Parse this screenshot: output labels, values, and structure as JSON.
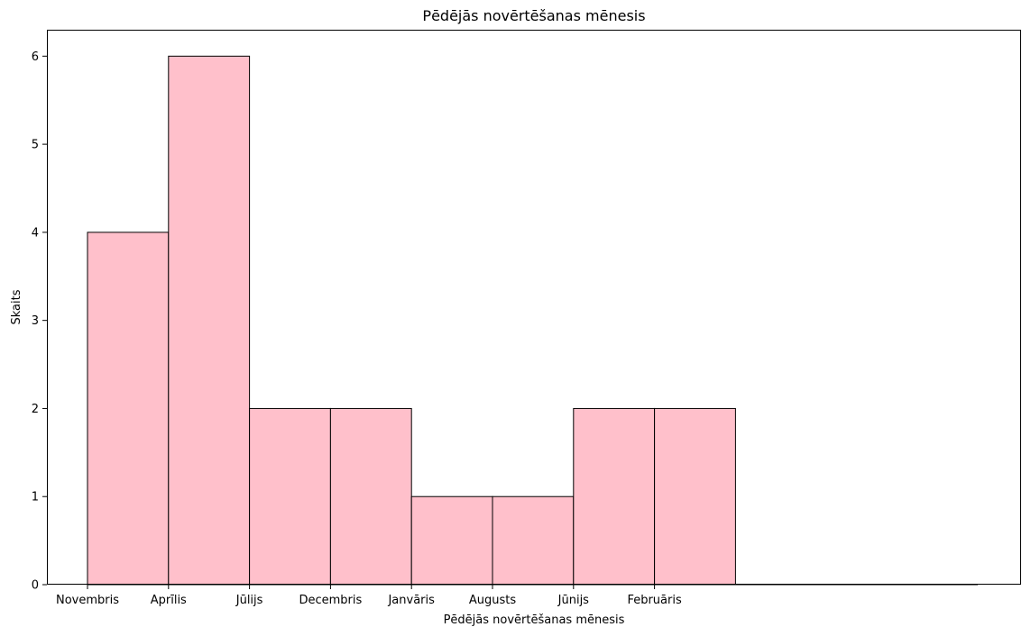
{
  "chart_data": {
    "type": "bar",
    "title": "Pēdējās novērtēšanas mēnesis",
    "xlabel": "Pēdējās novērtēšanas mēnesis",
    "ylabel": "Skaits",
    "categories": [
      "Novembris",
      "Aprīlis",
      "Jūlijs",
      "Decembris",
      "Janvāris",
      "Augusts",
      "Jūnijs",
      "Februāris"
    ],
    "values": [
      4,
      6,
      2,
      2,
      1,
      1,
      2,
      2
    ],
    "ylim": [
      0,
      6.3
    ],
    "yticks": [
      0,
      1,
      2,
      3,
      4,
      5,
      6
    ],
    "grid": false,
    "bar_color": "#ffc0cb",
    "edge_color": "#000000"
  }
}
